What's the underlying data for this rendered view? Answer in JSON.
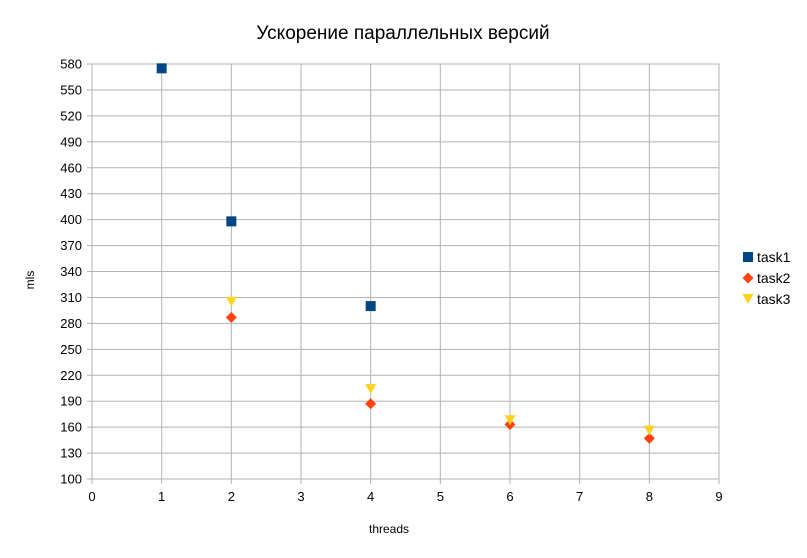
{
  "chart_data": {
    "type": "scatter",
    "title": "Ускорение параллельных версий",
    "xlabel": "threads",
    "ylabel": "mls",
    "xlim": [
      0,
      9
    ],
    "ylim": [
      100,
      580
    ],
    "x_ticks": [
      "0",
      "1",
      "2",
      "3",
      "4",
      "5",
      "6",
      "7",
      "8",
      "9"
    ],
    "y_ticks": [
      "100",
      "130",
      "160",
      "190",
      "220",
      "250",
      "280",
      "310",
      "340",
      "370",
      "400",
      "430",
      "460",
      "490",
      "520",
      "550",
      "580"
    ],
    "grid": true,
    "legend_position": "right",
    "series": [
      {
        "name": "task1",
        "marker": "square",
        "color": "#004586",
        "points": [
          [
            1,
            575
          ],
          [
            2,
            398
          ],
          [
            4,
            300
          ]
        ]
      },
      {
        "name": "task2",
        "marker": "diamond",
        "color": "#ff420e",
        "points": [
          [
            2,
            287
          ],
          [
            4,
            187
          ],
          [
            6,
            163
          ],
          [
            8,
            147
          ]
        ]
      },
      {
        "name": "task3",
        "marker": "triangle-down",
        "color": "#ffd320",
        "points": [
          [
            2,
            305
          ],
          [
            4,
            204
          ],
          [
            6,
            168
          ],
          [
            8,
            156
          ]
        ]
      }
    ]
  }
}
